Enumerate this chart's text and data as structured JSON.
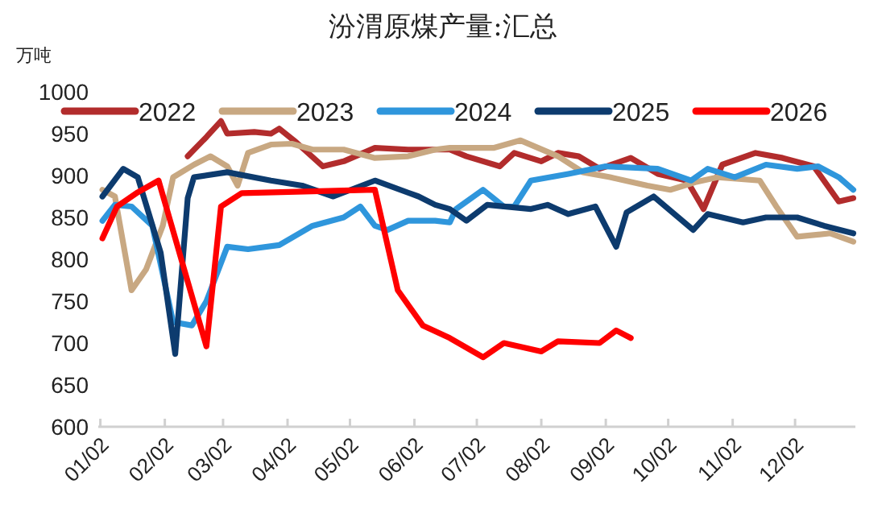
{
  "chart_data": {
    "type": "line",
    "title": "汾渭原煤产量:汇总",
    "ylabel": "万吨",
    "legend": "top",
    "grid": false,
    "marker": "none",
    "line_style": "solid",
    "xlim": [
      "--01-01",
      "--12-31"
    ],
    "xticks": [
      {
        "value": "--01-02",
        "label": "01/02"
      },
      {
        "value": "--02-02",
        "label": "02/02"
      },
      {
        "value": "--03-02",
        "label": "03/02"
      },
      {
        "value": "--04-02",
        "label": "04/02"
      },
      {
        "value": "--05-02",
        "label": "05/02"
      },
      {
        "value": "--06-02",
        "label": "06/02"
      },
      {
        "value": "--07-02",
        "label": "07/02"
      },
      {
        "value": "--08-02",
        "label": "08/02"
      },
      {
        "value": "--09-02",
        "label": "09/02"
      },
      {
        "value": "--10-02",
        "label": "10/02"
      },
      {
        "value": "--11-02",
        "label": "11/02"
      },
      {
        "value": "--12-02",
        "label": "12/02"
      }
    ],
    "ylim": [
      600,
      1000
    ],
    "yticks": [
      600,
      650,
      700,
      750,
      800,
      850,
      900,
      950,
      1000
    ],
    "series": [
      {
        "name": "2022",
        "color": "#b22c2c",
        "x": [
          "--02-13",
          "--02-22",
          "--03-01",
          "--03-04",
          "--03-17",
          "--03-25",
          "--03-29",
          "--04-06",
          "--04-19",
          "--04-29",
          "--05-14",
          "--05-30",
          "--06-12",
          "--06-19",
          "--06-27",
          "--07-13",
          "--07-20",
          "--08-02",
          "--08-10",
          "--08-20",
          "--08-30",
          "--09-14",
          "--09-27",
          "--10-11",
          "--10-19",
          "--10-28",
          "--11-13",
          "--11-26",
          "--12-11",
          "--12-23",
          "--12-30"
        ],
        "values": [
          923,
          946,
          965,
          950,
          952,
          950,
          956,
          940,
          911,
          917,
          933,
          931,
          931,
          931,
          923,
          911,
          927,
          917,
          927,
          923,
          908,
          921,
          902,
          894,
          860,
          913,
          927,
          921,
          911,
          869,
          873
        ]
      },
      {
        "name": "2023",
        "color": "#c8a882",
        "x": [
          "--01-03",
          "--01-09",
          "--01-17",
          "--01-24",
          "--02-01",
          "--02-06",
          "--02-16",
          "--02-24",
          "--03-04",
          "--03-09",
          "--03-14",
          "--03-25",
          "--04-04",
          "--04-14",
          "--04-29",
          "--05-14",
          "--05-30",
          "--06-12",
          "--06-19",
          "--06-27",
          "--07-10",
          "--07-23",
          "--08-10",
          "--08-22",
          "--09-04",
          "--09-22",
          "--10-03",
          "--10-15",
          "--10-26",
          "--11-15",
          "--11-23",
          "--12-03",
          "--12-19",
          "--12-30"
        ],
        "values": [
          883,
          875,
          763,
          788,
          840,
          898,
          913,
          923,
          911,
          888,
          927,
          937,
          938,
          931,
          931,
          921,
          923,
          931,
          933,
          933,
          933,
          942,
          923,
          904,
          898,
          888,
          883,
          892,
          898,
          894,
          863,
          827,
          831,
          821
        ]
      },
      {
        "name": "2024",
        "color": "#2f96dc",
        "x": [
          "--01-03",
          "--01-09",
          "--01-17",
          "--01-27",
          "--02-06",
          "--02-15",
          "--02-22",
          "--03-04",
          "--03-14",
          "--03-29",
          "--04-14",
          "--04-29",
          "--05-07",
          "--05-14",
          "--05-20",
          "--05-30",
          "--06-12",
          "--06-19",
          "--06-22",
          "--07-05",
          "--07-15",
          "--07-20",
          "--07-28",
          "--08-15",
          "--09-02",
          "--09-27",
          "--10-13",
          "--10-21",
          "--11-03",
          "--11-18",
          "--12-03",
          "--12-13",
          "--12-23",
          "--12-30"
        ],
        "values": [
          846,
          865,
          863,
          840,
          725,
          721,
          750,
          815,
          812,
          817,
          840,
          850,
          863,
          840,
          835,
          846,
          846,
          844,
          860,
          883,
          863,
          863,
          894,
          902,
          911,
          908,
          894,
          908,
          898,
          913,
          908,
          911,
          898,
          883
        ]
      },
      {
        "name": "2025",
        "color": "#0d3b6e",
        "x": [
          "--01-03",
          "--01-13",
          "--01-20",
          "--01-31",
          "--02-07",
          "--02-13",
          "--02-16",
          "--03-04",
          "--03-25",
          "--04-09",
          "--04-24",
          "--05-14",
          "--06-04",
          "--06-12",
          "--06-19",
          "--06-27",
          "--07-07",
          "--07-28",
          "--08-05",
          "--08-15",
          "--08-28",
          "--09-07",
          "--09-12",
          "--09-25",
          "--10-14",
          "--10-21",
          "--11-07",
          "--11-18",
          "--12-03",
          "--12-16",
          "--12-30"
        ],
        "values": [
          875,
          908,
          898,
          808,
          687,
          873,
          898,
          904,
          894,
          888,
          875,
          894,
          875,
          865,
          860,
          846,
          865,
          860,
          865,
          854,
          863,
          815,
          856,
          875,
          835,
          854,
          844,
          850,
          850,
          840,
          831
        ]
      },
      {
        "name": "2026",
        "color": "#ff0000",
        "x": [
          "--01-03",
          "--01-10",
          "--01-20",
          "--01-30",
          "--02-22",
          "--03-01",
          "--03-11",
          "--05-14",
          "--05-25",
          "--06-06",
          "--06-19",
          "--07-05",
          "--07-15",
          "--08-02",
          "--08-10",
          "--08-30",
          "--09-07",
          "--09-14"
        ],
        "values": [
          825,
          863,
          880,
          894,
          696,
          863,
          879,
          883,
          763,
          721,
          706,
          683,
          700,
          690,
          702,
          700,
          715,
          706
        ]
      }
    ]
  }
}
